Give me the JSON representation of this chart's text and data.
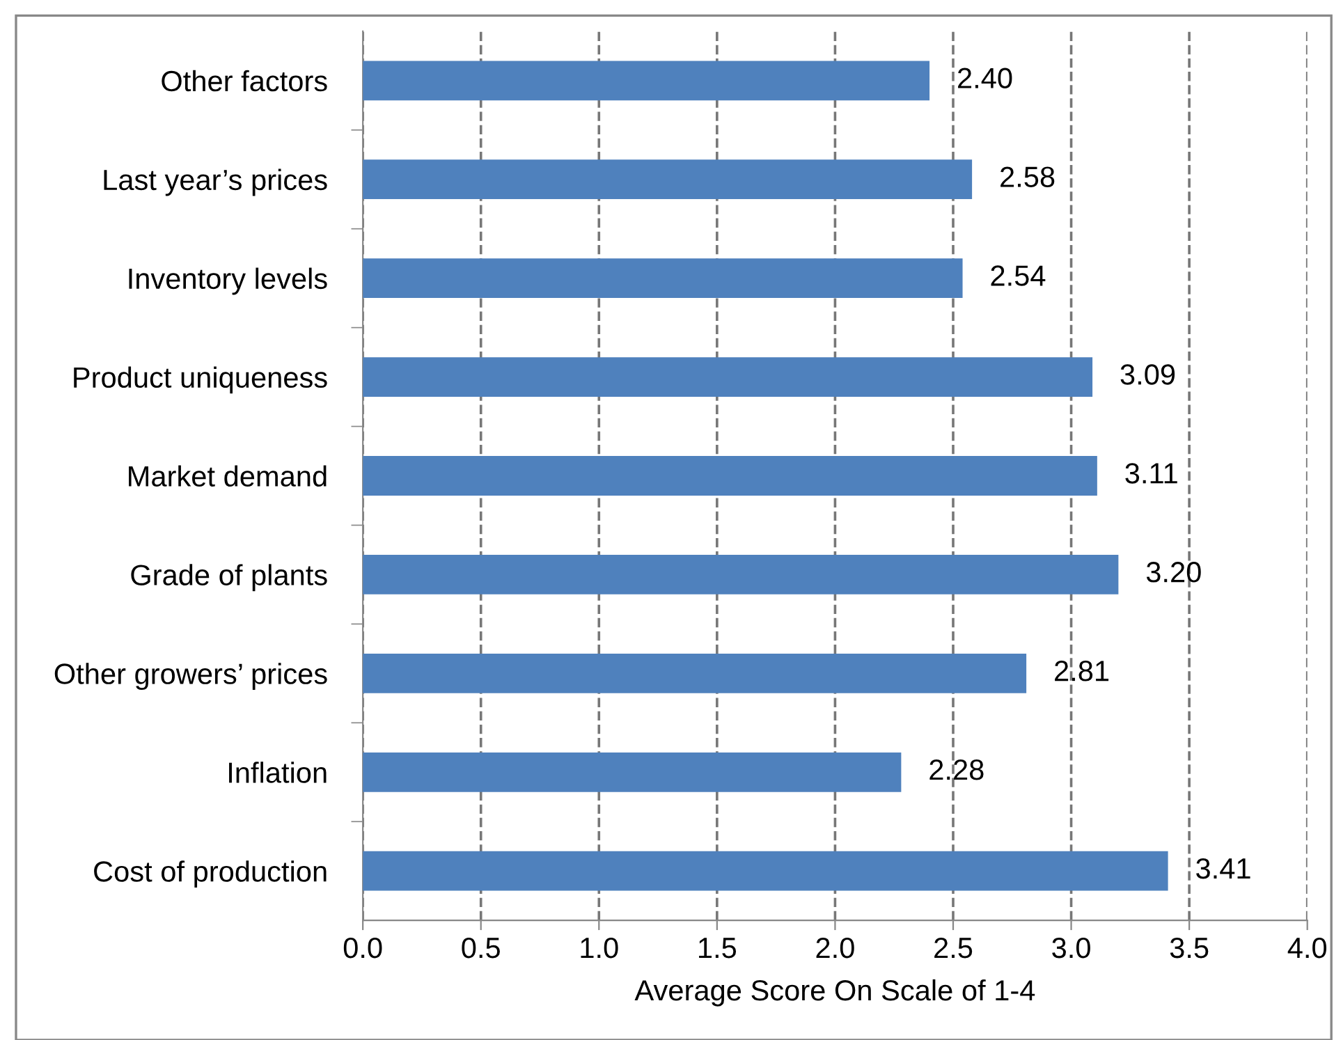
{
  "chart_data": {
    "type": "bar",
    "orientation": "horizontal",
    "xlabel": "Average Score On Scale of 1-4",
    "categories": [
      "Other factors",
      "Last year’s prices",
      "Inventory levels",
      "Product uniqueness",
      "Market demand",
      "Grade of plants",
      "Other growers’ prices",
      "Inflation",
      "Cost of production"
    ],
    "values": [
      2.4,
      2.58,
      2.54,
      3.09,
      3.11,
      3.2,
      2.81,
      2.28,
      3.41
    ],
    "value_labels": [
      "2.40",
      "2.58",
      "2.54",
      "3.09",
      "3.11",
      "3.20",
      "2.81",
      "2.28",
      "3.41"
    ],
    "color": "#4f81bd",
    "xlim": [
      0,
      4
    ],
    "xticks": [
      {
        "value": 0,
        "label": "0.0"
      },
      {
        "value": 0.5,
        "label": "0.5"
      },
      {
        "value": 1,
        "label": "1.0"
      },
      {
        "value": 1.5,
        "label": "1.5"
      },
      {
        "value": 2,
        "label": "2.0"
      },
      {
        "value": 2.5,
        "label": "2.5"
      },
      {
        "value": 3,
        "label": "3.0"
      },
      {
        "value": 3.5,
        "label": "3.5"
      },
      {
        "value": 4,
        "label": "4.0"
      }
    ],
    "grid": "x",
    "line_style": "dashed",
    "legend": false
  }
}
